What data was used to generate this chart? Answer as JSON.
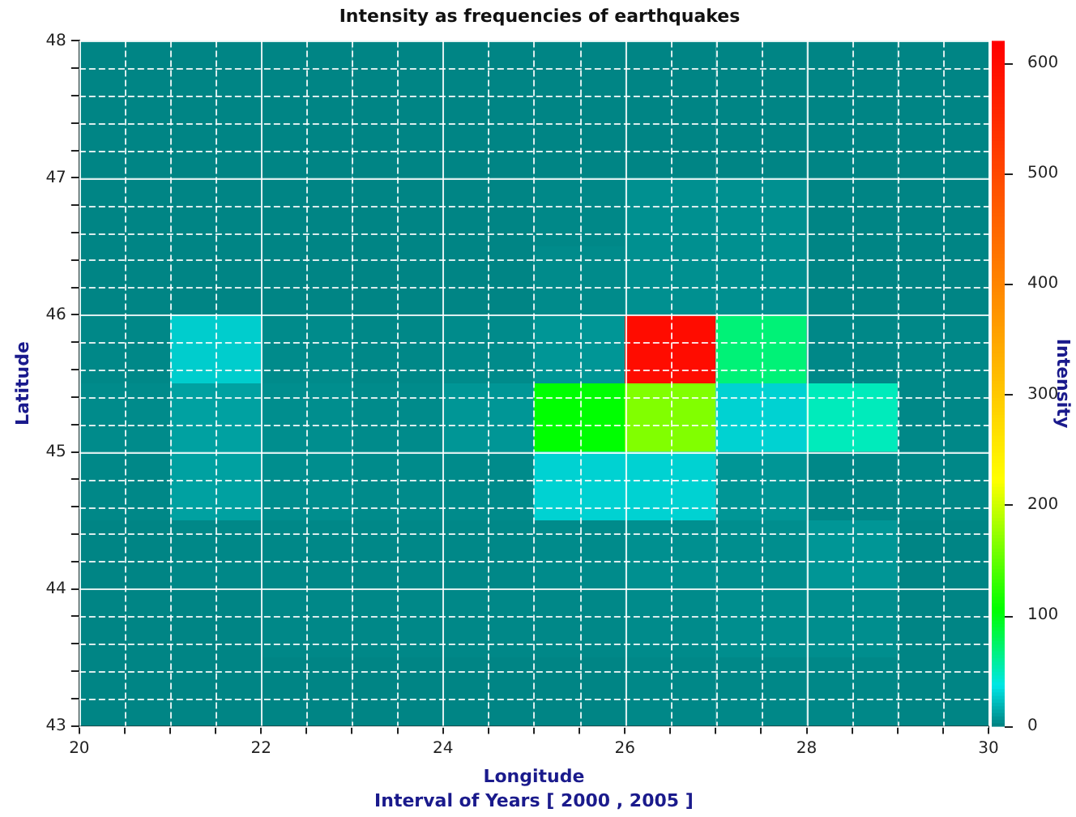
{
  "chart_data": {
    "type": "heatmap",
    "title": "Intensity as frequencies of earthquakes",
    "xlabel": "Longitude",
    "ylabel": "Latitude",
    "clabel": "Intensity",
    "annotations": [
      "Interval of Years [ 2000 , 2005 ]"
    ],
    "x": [
      20.5,
      21.5,
      22.5,
      23.5,
      24.5,
      25.5,
      26.5,
      27.5,
      28.5,
      29.5
    ],
    "y": [
      47.75,
      47.25,
      46.75,
      46.25,
      45.75,
      45.25,
      44.75,
      44.25,
      43.75,
      43.25
    ],
    "cells": [
      [
        2,
        2,
        2,
        2,
        2,
        2,
        2,
        2,
        2,
        2
      ],
      [
        2,
        2,
        2,
        2,
        2,
        2,
        2,
        2,
        2,
        2
      ],
      [
        2,
        2,
        2,
        2,
        2,
        3,
        6,
        6,
        2,
        2
      ],
      [
        2,
        2,
        2,
        2,
        2,
        4,
        6,
        6,
        2,
        2
      ],
      [
        3,
        28,
        4,
        3,
        4,
        8,
        600,
        70,
        3,
        3
      ],
      [
        4,
        12,
        5,
        4,
        8,
        105,
        165,
        30,
        50,
        3
      ],
      [
        3,
        12,
        5,
        4,
        4,
        30,
        30,
        8,
        3,
        3
      ],
      [
        2,
        3,
        3,
        3,
        3,
        4,
        6,
        5,
        8,
        2
      ],
      [
        2,
        2,
        3,
        3,
        3,
        3,
        4,
        5,
        5,
        2
      ],
      [
        2,
        2,
        2,
        2,
        2,
        2,
        3,
        3,
        3,
        2
      ]
    ],
    "xlim": [
      20,
      30
    ],
    "xticks": [
      20,
      {
        "value": 20.5,
        "label": null
      },
      {
        "value": 21,
        "label": null
      },
      {
        "value": 21.5,
        "label": null
      },
      22,
      {
        "value": 22.5,
        "label": null
      },
      {
        "value": 23,
        "label": null
      },
      {
        "value": 23.5,
        "label": null
      },
      24,
      {
        "value": 24.5,
        "label": null
      },
      {
        "value": 25,
        "label": null
      },
      {
        "value": 25.5,
        "label": null
      },
      26,
      {
        "value": 26.5,
        "label": null
      },
      {
        "value": 27,
        "label": null
      },
      {
        "value": 27.5,
        "label": null
      },
      28,
      {
        "value": 28.5,
        "label": null
      },
      {
        "value": 29,
        "label": null
      },
      {
        "value": 29.5,
        "label": null
      },
      30
    ],
    "ylim": [
      43,
      48
    ],
    "yticks": [
      43,
      {
        "value": 43.2,
        "label": null
      },
      {
        "value": 43.4,
        "label": null
      },
      {
        "value": 43.6,
        "label": null
      },
      {
        "value": 43.8,
        "label": null
      },
      44,
      {
        "value": 44.2,
        "label": null
      },
      {
        "value": 44.4,
        "label": null
      },
      {
        "value": 44.6,
        "label": null
      },
      {
        "value": 44.8,
        "label": null
      },
      45,
      {
        "value": 45.2,
        "label": null
      },
      {
        "value": 45.4,
        "label": null
      },
      {
        "value": 45.6,
        "label": null
      },
      {
        "value": 45.8,
        "label": null
      },
      46,
      {
        "value": 46.2,
        "label": null
      },
      {
        "value": 46.4,
        "label": null
      },
      {
        "value": 46.6,
        "label": null
      },
      {
        "value": 46.8,
        "label": null
      },
      47,
      {
        "value": 47.2,
        "label": null
      },
      {
        "value": 47.4,
        "label": null
      },
      {
        "value": 47.6,
        "label": null
      },
      {
        "value": 47.8,
        "label": null
      },
      48
    ],
    "clim": [
      0,
      620
    ],
    "cticks": [
      0,
      100,
      200,
      300,
      400,
      500,
      600
    ],
    "grid": true
  }
}
